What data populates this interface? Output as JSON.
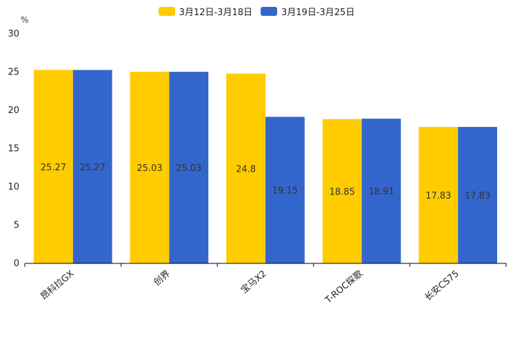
{
  "chart_data": {
    "type": "bar",
    "title": "",
    "ylabel": "%",
    "xlabel": "",
    "ylim": [
      0,
      30
    ],
    "yticks": [
      0,
      5,
      10,
      15,
      20,
      25,
      30
    ],
    "categories": [
      "昂科拉GX",
      "创界",
      "宝马X2",
      "T-ROC探歌",
      "长安CS75"
    ],
    "series": [
      {
        "name": "3月12日-3月18日",
        "color": "#FFCC00",
        "values": [
          25.27,
          25.03,
          24.8,
          18.85,
          17.83
        ]
      },
      {
        "name": "3月19日-3月25日",
        "color": "#3366CC",
        "values": [
          25.27,
          25.03,
          19.15,
          18.91,
          17.83
        ]
      }
    ],
    "legend_position": "top-center",
    "grid": false
  }
}
